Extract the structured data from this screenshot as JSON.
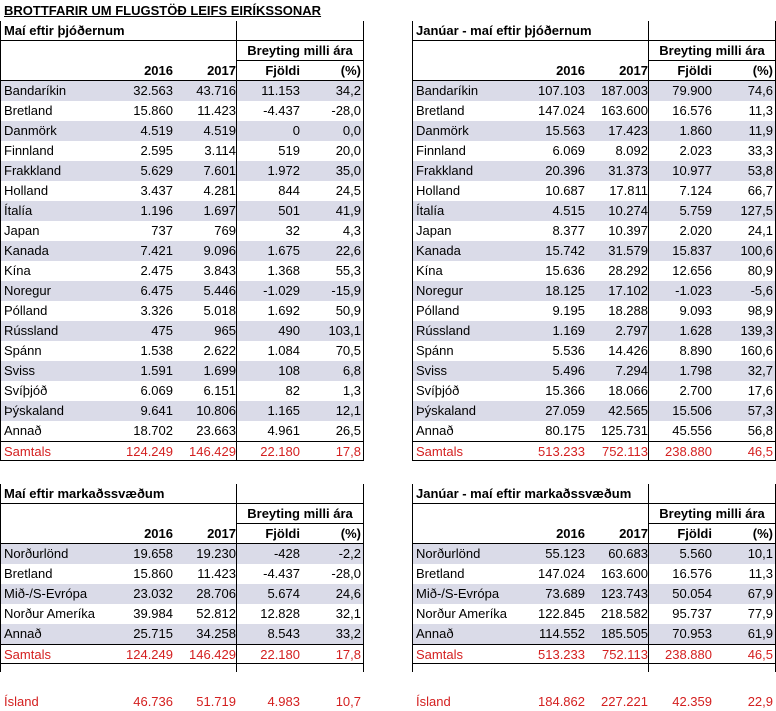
{
  "title": "BROTTFARIR UM FLUGSTÖÐ LEIFS EIRÍKSSONAR",
  "header_labels": {
    "breyting": "Breyting milli ára",
    "y2016": "2016",
    "y2017": "2017",
    "fjoldi": "Fjöldi",
    "pct": "(%)"
  },
  "tables": {
    "may_nat": {
      "title": "Maí eftir þjóðernum",
      "rows": [
        [
          "Bandaríkin",
          "32.563",
          "43.716",
          "11.153",
          "34,2"
        ],
        [
          "Bretland",
          "15.860",
          "11.423",
          "-4.437",
          "-28,0"
        ],
        [
          "Danmörk",
          "4.519",
          "4.519",
          "0",
          "0,0"
        ],
        [
          "Finnland",
          "2.595",
          "3.114",
          "519",
          "20,0"
        ],
        [
          "Frakkland",
          "5.629",
          "7.601",
          "1.972",
          "35,0"
        ],
        [
          "Holland",
          "3.437",
          "4.281",
          "844",
          "24,5"
        ],
        [
          "Ítalía",
          "1.196",
          "1.697",
          "501",
          "41,9"
        ],
        [
          "Japan",
          "737",
          "769",
          "32",
          "4,3"
        ],
        [
          "Kanada",
          "7.421",
          "9.096",
          "1.675",
          "22,6"
        ],
        [
          "Kína",
          "2.475",
          "3.843",
          "1.368",
          "55,3"
        ],
        [
          "Noregur",
          "6.475",
          "5.446",
          "-1.029",
          "-15,9"
        ],
        [
          "Pólland",
          "3.326",
          "5.018",
          "1.692",
          "50,9"
        ],
        [
          "Rússland",
          "475",
          "965",
          "490",
          "103,1"
        ],
        [
          "Spánn",
          "1.538",
          "2.622",
          "1.084",
          "70,5"
        ],
        [
          "Sviss",
          "1.591",
          "1.699",
          "108",
          "6,8"
        ],
        [
          "Svíþjóð",
          "6.069",
          "6.151",
          "82",
          "1,3"
        ],
        [
          "Þýskaland",
          "9.641",
          "10.806",
          "1.165",
          "12,1"
        ],
        [
          "Annað",
          "18.702",
          "23.663",
          "4.961",
          "26,5"
        ]
      ],
      "total": [
        "Samtals",
        "124.249",
        "146.429",
        "22.180",
        "17,8"
      ]
    },
    "jm_nat": {
      "title": "Janúar - maí eftir þjóðernum",
      "rows": [
        [
          "Bandaríkin",
          "107.103",
          "187.003",
          "79.900",
          "74,6"
        ],
        [
          "Bretland",
          "147.024",
          "163.600",
          "16.576",
          "11,3"
        ],
        [
          "Danmörk",
          "15.563",
          "17.423",
          "1.860",
          "11,9"
        ],
        [
          "Finnland",
          "6.069",
          "8.092",
          "2.023",
          "33,3"
        ],
        [
          "Frakkland",
          "20.396",
          "31.373",
          "10.977",
          "53,8"
        ],
        [
          "Holland",
          "10.687",
          "17.811",
          "7.124",
          "66,7"
        ],
        [
          "Ítalía",
          "4.515",
          "10.274",
          "5.759",
          "127,5"
        ],
        [
          "Japan",
          "8.377",
          "10.397",
          "2.020",
          "24,1"
        ],
        [
          "Kanada",
          "15.742",
          "31.579",
          "15.837",
          "100,6"
        ],
        [
          "Kína",
          "15.636",
          "28.292",
          "12.656",
          "80,9"
        ],
        [
          "Noregur",
          "18.125",
          "17.102",
          "-1.023",
          "-5,6"
        ],
        [
          "Pólland",
          "9.195",
          "18.288",
          "9.093",
          "98,9"
        ],
        [
          "Rússland",
          "1.169",
          "2.797",
          "1.628",
          "139,3"
        ],
        [
          "Spánn",
          "5.536",
          "14.426",
          "8.890",
          "160,6"
        ],
        [
          "Sviss",
          "5.496",
          "7.294",
          "1.798",
          "32,7"
        ],
        [
          "Svíþjóð",
          "15.366",
          "18.066",
          "2.700",
          "17,6"
        ],
        [
          "Þýskaland",
          "27.059",
          "42.565",
          "15.506",
          "57,3"
        ],
        [
          "Annað",
          "80.175",
          "125.731",
          "45.556",
          "56,8"
        ]
      ],
      "total": [
        "Samtals",
        "513.233",
        "752.113",
        "238.880",
        "46,5"
      ]
    },
    "may_mkt": {
      "title": "Maí eftir markaðssvæðum",
      "rows": [
        [
          "Norðurlönd",
          "19.658",
          "19.230",
          "-428",
          "-2,2"
        ],
        [
          "Bretland",
          "15.860",
          "11.423",
          "-4.437",
          "-28,0"
        ],
        [
          "Mið-/S-Evrópa",
          "23.032",
          "28.706",
          "5.674",
          "24,6"
        ],
        [
          "Norður Ameríka",
          "39.984",
          "52.812",
          "12.828",
          "32,1"
        ],
        [
          "Annað",
          "25.715",
          "34.258",
          "8.543",
          "33,2"
        ]
      ],
      "total": [
        "Samtals",
        "124.249",
        "146.429",
        "22.180",
        "17,8"
      ],
      "iceland": [
        "Ísland",
        "46.736",
        "51.719",
        "4.983",
        "10,7"
      ]
    },
    "jm_mkt": {
      "title": "Janúar - maí eftir markaðssvæðum",
      "rows": [
        [
          "Norðurlönd",
          "55.123",
          "60.683",
          "5.560",
          "10,1"
        ],
        [
          "Bretland",
          "147.024",
          "163.600",
          "16.576",
          "11,3"
        ],
        [
          "Mið-/S-Evrópa",
          "73.689",
          "123.743",
          "50.054",
          "67,9"
        ],
        [
          "Norður Ameríka",
          "122.845",
          "218.582",
          "95.737",
          "77,9"
        ],
        [
          "Annað",
          "114.552",
          "185.505",
          "70.953",
          "61,9"
        ]
      ],
      "total": [
        "Samtals",
        "513.233",
        "752.113",
        "238.880",
        "46,5"
      ],
      "iceland": [
        "Ísland",
        "184.862",
        "227.221",
        "42.359",
        "22,9"
      ]
    }
  },
  "colors": {
    "shade": "#dadbe8",
    "total_text": "#d42020"
  }
}
